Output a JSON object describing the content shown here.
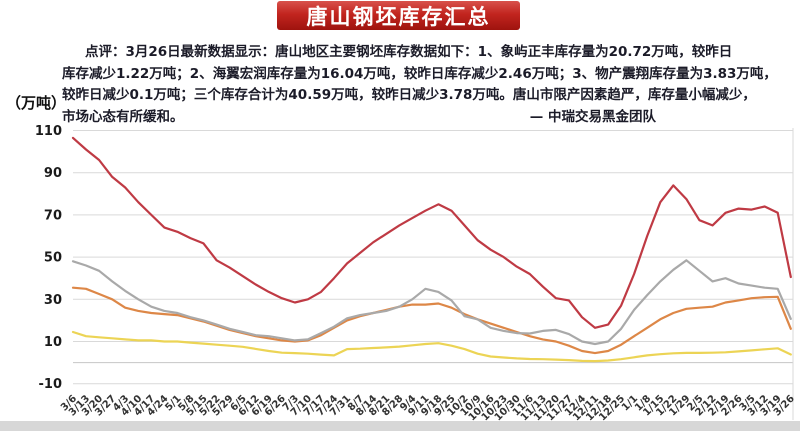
{
  "title": "唐山钢坯库存汇总",
  "unit_label": "（万吨）",
  "commentary": {
    "lines": [
      "点评：3月26日最新数据显示：唐山地区主要钢坯库存数据如下：1、象屿正丰库存量为20.72万吨，较昨日",
      "库存减少1.22万吨；2、海翼宏润库存量为16.04万吨，较昨日库存减少2.46万吨；3、物产震翔库存量为3.83万吨，",
      "较昨日减少0.1万吨；三个库存合计为40.59万吨，较昨日减少3.78万吨。唐山市限产因素趋严，库存量小幅减少，",
      "市场心态有所缓和。"
    ],
    "signature": "— 中瑞交易黑金团队"
  },
  "chart_data": {
    "type": "line",
    "title": "唐山钢坯库存汇总",
    "ylabel": "（万吨）",
    "ylim": [
      -10,
      110
    ],
    "yticks": [
      110,
      90,
      70,
      50,
      30,
      10,
      -10
    ],
    "grid": true,
    "legend_position": "none",
    "grid_color": "#d9d9d9",
    "zero_axis_color": "#c6c6c6",
    "categories": [
      "3/6",
      "3/13",
      "3/20",
      "3/27",
      "4/3",
      "4/10",
      "4/17",
      "4/24",
      "5/1",
      "5/8",
      "5/15",
      "5/22",
      "5/29",
      "6/5",
      "6/12",
      "6/19",
      "6/26",
      "7/3",
      "7/10",
      "7/17",
      "7/24",
      "7/31",
      "8/7",
      "8/14",
      "8/21",
      "8/28",
      "9/4",
      "9/11",
      "9/18",
      "9/25",
      "10/2",
      "10/9",
      "10/16",
      "10/23",
      "10/30",
      "11/6",
      "11/13",
      "11/20",
      "11/27",
      "12/4",
      "12/11",
      "12/18",
      "12/25",
      "1/1",
      "1/8",
      "1/15",
      "1/22",
      "1/29",
      "2/5",
      "2/12",
      "2/19",
      "2/26",
      "3/5",
      "3/12",
      "3/19",
      "3/26"
    ],
    "series": [
      {
        "name": "合计",
        "color": "#bf3a44",
        "width": 2.2,
        "values": [
          106.5,
          101,
          96,
          88,
          83,
          76,
          70,
          64,
          62,
          59,
          56.5,
          48.5,
          45,
          41,
          37,
          33.5,
          30.5,
          28.5,
          30,
          33.5,
          40,
          47,
          52,
          57,
          61,
          65,
          68.5,
          72,
          75,
          72,
          65,
          58,
          53.5,
          50,
          45.5,
          42,
          36,
          30.5,
          29.5,
          21.5,
          16.5,
          18,
          27,
          42,
          60,
          76,
          84,
          77.5,
          67.5,
          65,
          71,
          73,
          72.5,
          74,
          71,
          40.59
        ]
      },
      {
        "name": "象屿正丰",
        "color": "#a9a9a9",
        "width": 2.2,
        "values": [
          48,
          46,
          43.5,
          38.5,
          34,
          30,
          26.5,
          24.5,
          23.5,
          21.5,
          20,
          18,
          16,
          14.5,
          13,
          12.5,
          11.5,
          10.5,
          11,
          14,
          17,
          21,
          22.5,
          23.5,
          24.5,
          26.5,
          30,
          35,
          33.5,
          29.5,
          22,
          20.5,
          16.5,
          15,
          14,
          13.8,
          15,
          15.5,
          13.5,
          10,
          8.8,
          10,
          16,
          25,
          32,
          38.5,
          44,
          48.5,
          43.5,
          38.5,
          40,
          37.5,
          36.5,
          35.5,
          35,
          20.72
        ]
      },
      {
        "name": "海翼宏润",
        "color": "#dd8747",
        "width": 2.2,
        "values": [
          35.5,
          35,
          32.5,
          30,
          26,
          24.5,
          23.5,
          23,
          22.5,
          21,
          19.5,
          17.5,
          15.5,
          14,
          12.5,
          11.5,
          10.5,
          10,
          10.5,
          13,
          16.5,
          20,
          22,
          23.5,
          25,
          26.5,
          27.5,
          27.5,
          28,
          26,
          23,
          20.5,
          18.5,
          16.5,
          14.5,
          12.5,
          11,
          10,
          8,
          5.5,
          4.5,
          5.5,
          8.5,
          12.5,
          16.5,
          20.5,
          23.5,
          25.5,
          26,
          26.5,
          28.5,
          29.5,
          30.5,
          31,
          31.2,
          16.04
        ]
      },
      {
        "name": "物产震翔",
        "color": "#ecd455",
        "width": 2.2,
        "values": [
          14.5,
          12.5,
          12,
          11.5,
          11,
          10.5,
          10.5,
          10,
          10,
          9.5,
          9,
          8.5,
          8,
          7.5,
          6.5,
          5.5,
          4.7,
          4.5,
          4.2,
          3.8,
          3.4,
          6.4,
          6.6,
          6.9,
          7.2,
          7.6,
          8.2,
          8.8,
          9.2,
          8,
          6.4,
          4.2,
          2.9,
          2.4,
          2,
          1.7,
          1.6,
          1.4,
          1.2,
          0.8,
          0.7,
          1,
          1.6,
          2.5,
          3.4,
          4,
          4.4,
          4.6,
          4.6,
          4.7,
          4.9,
          5.3,
          5.8,
          6.3,
          6.8,
          3.83
        ]
      }
    ]
  }
}
